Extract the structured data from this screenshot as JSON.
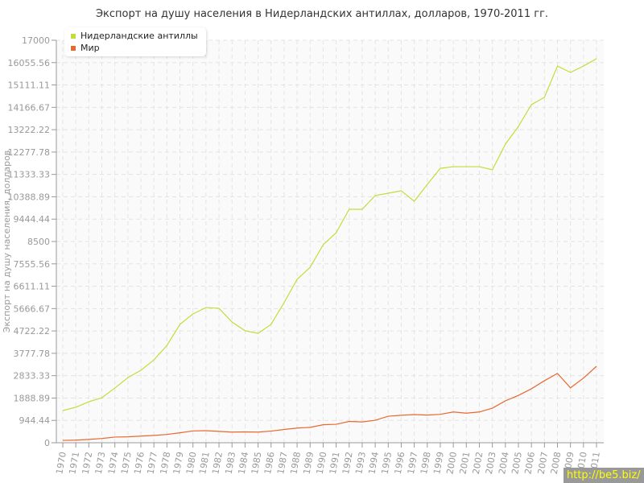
{
  "chart_data": {
    "type": "line",
    "title": "Экспорт на душу населения в Нидерландских антиллах, долларов, 1970-2011 гг.",
    "ylabel": "Экспорт на душу населения, долларов",
    "xlabel": "",
    "ylim": [
      0,
      17000
    ],
    "yticks": [
      "0",
      "944.44",
      "1888.89",
      "2833.33",
      "3777.78",
      "4722.22",
      "5666.67",
      "6611.11",
      "7555.56",
      "8500",
      "9444.44",
      "10388.89",
      "11333.33",
      "12277.78",
      "13222.22",
      "14166.67",
      "15111.11",
      "16055.56",
      "17000"
    ],
    "x": [
      1970,
      1971,
      1972,
      1973,
      1974,
      1975,
      1976,
      1977,
      1978,
      1979,
      1980,
      1981,
      1982,
      1983,
      1984,
      1985,
      1986,
      1987,
      1988,
      1989,
      1990,
      1991,
      1992,
      1993,
      1994,
      1995,
      1996,
      1997,
      1998,
      1999,
      2000,
      2001,
      2002,
      2003,
      2004,
      2005,
      2006,
      2007,
      2008,
      2009,
      2010,
      2011
    ],
    "grid": true,
    "legend_position": "top-left",
    "series": [
      {
        "name": "Нидерландские антиллы",
        "color": "#c5dc3a",
        "values": [
          1360,
          1500,
          1730,
          1900,
          2310,
          2750,
          3060,
          3500,
          4110,
          5000,
          5440,
          5710,
          5680,
          5100,
          4730,
          4620,
          5000,
          5920,
          6900,
          7410,
          8360,
          8870,
          9860,
          9860,
          10440,
          10540,
          10640,
          10200,
          10910,
          11590,
          11660,
          11660,
          11660,
          11530,
          12610,
          13360,
          14280,
          14590,
          15910,
          15640,
          15910,
          16220
        ]
      },
      {
        "name": "Мир",
        "color": "#e8692f",
        "values": [
          100,
          110,
          140,
          180,
          240,
          250,
          280,
          310,
          350,
          420,
          500,
          510,
          480,
          450,
          460,
          450,
          490,
          560,
          620,
          650,
          760,
          780,
          900,
          880,
          950,
          1120,
          1160,
          1190,
          1170,
          1200,
          1300,
          1250,
          1300,
          1460,
          1770,
          2000,
          2280,
          2620,
          2930,
          2320,
          2730,
          3230
        ]
      }
    ]
  },
  "watermark": "http://be5.biz/"
}
